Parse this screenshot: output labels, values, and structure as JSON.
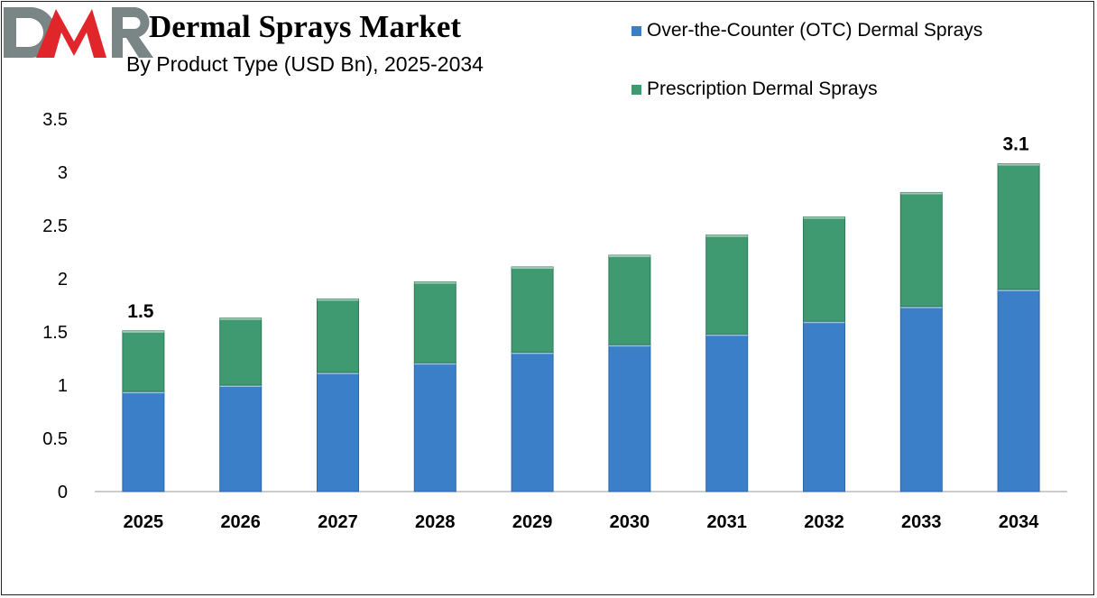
{
  "chart_data": {
    "type": "bar",
    "stacked": true,
    "title": "Dermal Sprays Market",
    "subtitle": "By Product Type (USD Bn), 2025-2034",
    "xlabel": "",
    "ylabel": "",
    "ylim": [
      0,
      3.5
    ],
    "yticks": [
      "0",
      "0.5",
      "1",
      "1.5",
      "2",
      "2.5",
      "3",
      "3.5"
    ],
    "grid": false,
    "legend_position": "top-right",
    "categories": [
      "2025",
      "2026",
      "2027",
      "2028",
      "2029",
      "2030",
      "2031",
      "2032",
      "2033",
      "2034"
    ],
    "series": [
      {
        "name": "Over-the-Counter (OTC) Dermal Sprays",
        "color": "#3a7fc8",
        "values": [
          0.94,
          1.0,
          1.12,
          1.21,
          1.31,
          1.38,
          1.48,
          1.6,
          1.74,
          1.9
        ]
      },
      {
        "name": "Prescription Dermal Sprays",
        "color": "#3f9a72",
        "values": [
          0.57,
          0.63,
          0.69,
          0.76,
          0.8,
          0.84,
          0.93,
          0.98,
          1.07,
          1.18
        ]
      }
    ],
    "annotations": [
      {
        "category": "2025",
        "label": "1.5"
      },
      {
        "category": "2034",
        "label": "3.1"
      }
    ]
  },
  "logo": {
    "text": "DMR",
    "colors": [
      "#7a8585",
      "#e0262b"
    ]
  }
}
